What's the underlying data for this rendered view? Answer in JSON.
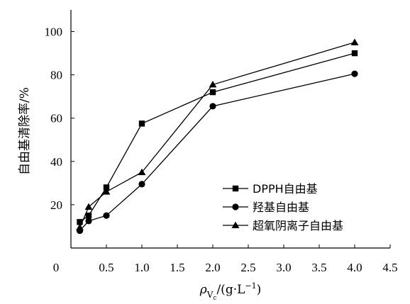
{
  "chart_data": {
    "type": "line",
    "xlabel": "ρVc/(g·L−1)",
    "xlabel_parts": {
      "symbol": "ρ",
      "sub": "V",
      "subsub": "c",
      "unit": "/(g·L",
      "sup": "−1",
      "close": ")"
    },
    "ylabel": "自由基清除率/%",
    "xlim": [
      0,
      4.5
    ],
    "ylim": [
      0,
      110
    ],
    "x_ticks": [
      0.5,
      1.0,
      1.5,
      2.0,
      2.5,
      3.0,
      3.5,
      4.0,
      4.5
    ],
    "x_tick_labels": [
      "0.5",
      "1.0",
      "1.5",
      "2.0",
      "2.5",
      "3.0",
      "3.5",
      "4.0",
      "4.5"
    ],
    "y_ticks": [
      20,
      40,
      60,
      80,
      100
    ],
    "y_tick_labels": [
      "20",
      "40",
      "60",
      "80",
      "100"
    ],
    "origin_label": "0",
    "grid": false,
    "legend_position": "bottom-right",
    "series": [
      {
        "name": "DPPH自由基",
        "marker": "square",
        "x": [
          0.125,
          0.25,
          0.5,
          1.0,
          2.0,
          4.0
        ],
        "y": [
          12,
          15,
          28,
          57.5,
          72,
          90
        ]
      },
      {
        "name": "羟基自由基",
        "marker": "circle",
        "x": [
          0.125,
          0.25,
          0.5,
          1.0,
          2.0,
          4.0
        ],
        "y": [
          8,
          12.5,
          15,
          29.5,
          65.5,
          80.5
        ]
      },
      {
        "name": "超氧阴离子自由基",
        "marker": "triangle",
        "x": [
          0.125,
          0.25,
          0.5,
          1.0,
          2.0,
          4.0
        ],
        "y": [
          9.5,
          19,
          26,
          35,
          75.5,
          95
        ]
      }
    ]
  }
}
